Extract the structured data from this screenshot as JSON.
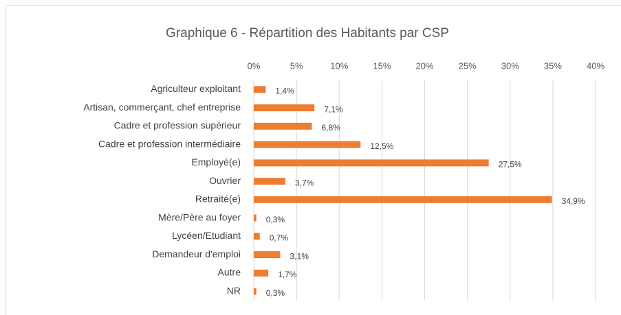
{
  "chart_data": {
    "type": "bar",
    "orientation": "horizontal",
    "title": "Graphique 6 - Répartition des Habitants par CSP",
    "categories": [
      "Agriculteur exploitant",
      "Artisan, commerçant, chef entreprise",
      "Cadre et profession supérieur",
      "Cadre et profession intermédiaire",
      "Employé(e)",
      "Ouvrier",
      "Retraité(e)",
      "Mère/Père au foyer",
      "Lycéen/Etudiant",
      "Demandeur d'emploi",
      "Autre",
      "NR"
    ],
    "values": [
      1.4,
      7.1,
      6.8,
      12.5,
      27.5,
      3.7,
      34.9,
      0.3,
      0.7,
      3.1,
      1.7,
      0.3
    ],
    "value_labels": [
      "1,4%",
      "7,1%",
      "6,8%",
      "12,5%",
      "27,5%",
      "3,7%",
      "34,9%",
      "0,3%",
      "0,7%",
      "3,1%",
      "1,7%",
      "0,3%"
    ],
    "color": "#ed7d31",
    "xlim": [
      0,
      40
    ],
    "xticks": [
      {
        "value": 0,
        "label": "0%"
      },
      {
        "value": 5,
        "label": "5%"
      },
      {
        "value": 10,
        "label": "10%"
      },
      {
        "value": 15,
        "label": "15%"
      },
      {
        "value": 20,
        "label": "20%"
      },
      {
        "value": 25,
        "label": "25%"
      },
      {
        "value": 30,
        "label": "30%"
      },
      {
        "value": 35,
        "label": "35%"
      },
      {
        "value": 40,
        "label": "40%"
      }
    ],
    "grid": true
  }
}
